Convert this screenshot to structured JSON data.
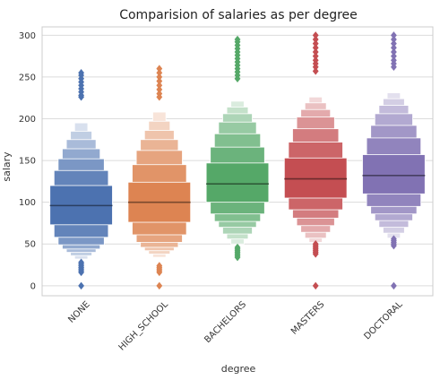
{
  "chart_data": {
    "type": "boxen",
    "title": "Comparision of salaries as per degree",
    "xlabel": "degree",
    "ylabel": "salary",
    "ylim": [
      -12,
      310
    ],
    "yticks": [
      0,
      50,
      100,
      150,
      200,
      250,
      300
    ],
    "grid": "horizontal",
    "categories": [
      "NONE",
      "HIGH_SCHOOL",
      "BACHELORS",
      "MASTERS",
      "DOCTORAL"
    ],
    "colors": [
      "#4c72b0",
      "#dd8452",
      "#55a868",
      "#c44e52",
      "#8172b3"
    ],
    "series": [
      {
        "median": 96,
        "levels": [
          [
            73,
            120
          ],
          [
            58,
            138
          ],
          [
            49,
            152
          ],
          [
            44,
            164
          ],
          [
            40,
            175
          ],
          [
            36,
            185
          ],
          [
            32,
            195
          ]
        ],
        "outliers_low": [
          0,
          16,
          18,
          20,
          22,
          24,
          26,
          28
        ],
        "outliers_high": [
          226,
          228,
          232,
          236,
          240,
          244,
          248,
          252,
          255
        ]
      },
      {
        "median": 100,
        "levels": [
          [
            76,
            124
          ],
          [
            61,
            145
          ],
          [
            52,
            162
          ],
          [
            46,
            175
          ],
          [
            42,
            186
          ],
          [
            38,
            197
          ],
          [
            34,
            208
          ]
        ],
        "outliers_low": [
          0,
          16,
          18,
          20,
          22,
          24
        ],
        "outliers_high": [
          226,
          230,
          235,
          240,
          245,
          250,
          255,
          260
        ]
      },
      {
        "median": 122,
        "levels": [
          [
            100,
            147
          ],
          [
            86,
            166
          ],
          [
            77,
            182
          ],
          [
            70,
            196
          ],
          [
            62,
            206
          ],
          [
            56,
            214
          ],
          [
            50,
            221
          ]
        ],
        "outliers_low": [
          34,
          36,
          38,
          40,
          42,
          44,
          46
        ],
        "outliers_high": [
          248,
          252,
          256,
          260,
          264,
          268,
          272,
          276,
          280,
          284,
          288,
          292,
          295
        ]
      },
      {
        "median": 128,
        "levels": [
          [
            105,
            153
          ],
          [
            91,
            172
          ],
          [
            81,
            188
          ],
          [
            72,
            202
          ],
          [
            64,
            211
          ],
          [
            57,
            219
          ],
          [
            52,
            226
          ]
        ],
        "outliers_low": [
          0,
          38,
          40,
          42,
          44,
          46,
          48,
          50
        ],
        "outliers_high": [
          257,
          262,
          266,
          270,
          275,
          280,
          285,
          290,
          295,
          300
        ]
      },
      {
        "median": 132,
        "levels": [
          [
            110,
            157
          ],
          [
            95,
            177
          ],
          [
            86,
            192
          ],
          [
            78,
            206
          ],
          [
            70,
            216
          ],
          [
            63,
            224
          ],
          [
            57,
            231
          ]
        ],
        "outliers_low": [
          0,
          48,
          50,
          52,
          54,
          56
        ],
        "outliers_high": [
          262,
          266,
          270,
          275,
          280,
          285,
          290,
          295,
          300
        ]
      }
    ]
  }
}
